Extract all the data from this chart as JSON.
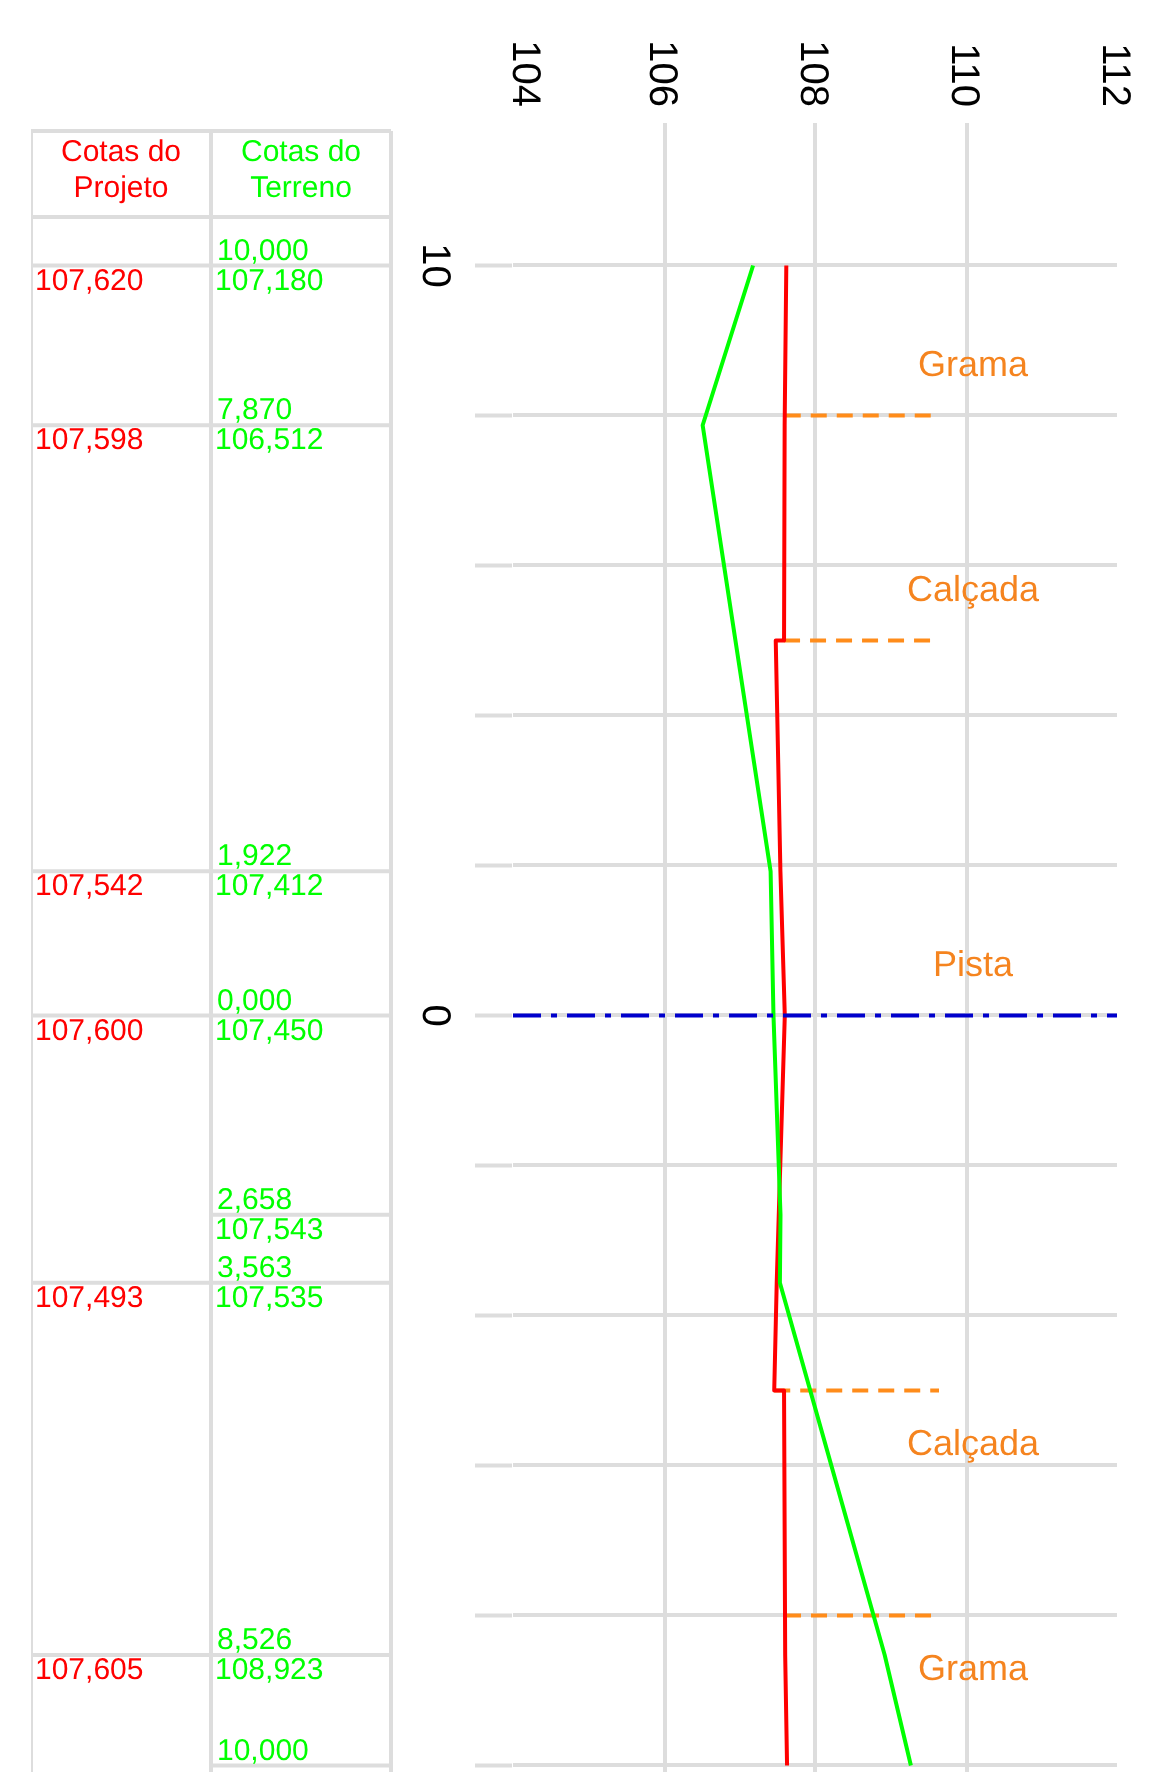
{
  "chart_data": {
    "type": "line",
    "orientation": "horizontal",
    "xlim": [
      104,
      112
    ],
    "xticks": [
      104,
      106,
      108,
      110,
      112
    ],
    "ylim": [
      -10.1,
      11.9
    ],
    "yticks": [
      {
        "value": 10,
        "label": "10"
      },
      {
        "value": 8,
        "label": null
      },
      {
        "value": 6,
        "label": null
      },
      {
        "value": 4,
        "label": null
      },
      {
        "value": 2,
        "label": null
      },
      {
        "value": 0,
        "label": "0"
      },
      {
        "value": -2,
        "label": null
      },
      {
        "value": -4,
        "label": null
      },
      {
        "value": -6,
        "label": null
      },
      {
        "value": -8,
        "label": null
      },
      {
        "value": -10,
        "label": null
      }
    ],
    "grid": true,
    "line_style": "solid",
    "series": [
      {
        "name": "Cotas do Projeto",
        "color": "#ff0000",
        "x": [
          10,
          7.87,
          5,
          5,
          1.922,
          0,
          -3.563,
          -5,
          -5,
          -8.526,
          -10
        ],
        "values": [
          107.62,
          107.598,
          107.59,
          107.48,
          107.542,
          107.6,
          107.493,
          107.46,
          107.59,
          107.605,
          107.63
        ]
      },
      {
        "name": "Cotas do Terreno",
        "color": "#00ff00",
        "x": [
          10,
          7.87,
          1.922,
          0,
          -2.658,
          -3.563,
          -8.526,
          -10
        ],
        "values": [
          107.18,
          106.512,
          107.412,
          107.45,
          107.543,
          107.535,
          108.923,
          109.27
        ]
      }
    ],
    "ref_lines": [
      {
        "axis": "y",
        "value": 8,
        "color": "#ff8c1a",
        "line_style": "dashed",
        "label": "Grama"
      },
      {
        "axis": "y",
        "value": 5,
        "color": "#ff8c1a",
        "line_style": "dashed",
        "label": "Calçada"
      },
      {
        "axis": "y",
        "value": 0,
        "color": "#0000cc",
        "line_style": "dashdot",
        "label": "Pista"
      },
      {
        "axis": "y",
        "value": -5,
        "color": "#ff8c1a",
        "line_style": "dashed",
        "label": "Calçada"
      },
      {
        "axis": "y",
        "value": -8,
        "color": "#ff8c1a",
        "line_style": "dashed",
        "label": "Grama"
      }
    ],
    "annotations": [
      "10,000",
      "7,870",
      "1,922",
      "0,000",
      "2,658",
      "3,563",
      "8,526",
      "10,000",
      "107,180",
      "106,512",
      "107,412",
      "107,450",
      "107,543",
      "107,535",
      "108,923",
      "107,620",
      "107,598",
      "107,542",
      "107,600",
      "107,493",
      "107,605"
    ]
  }
}
